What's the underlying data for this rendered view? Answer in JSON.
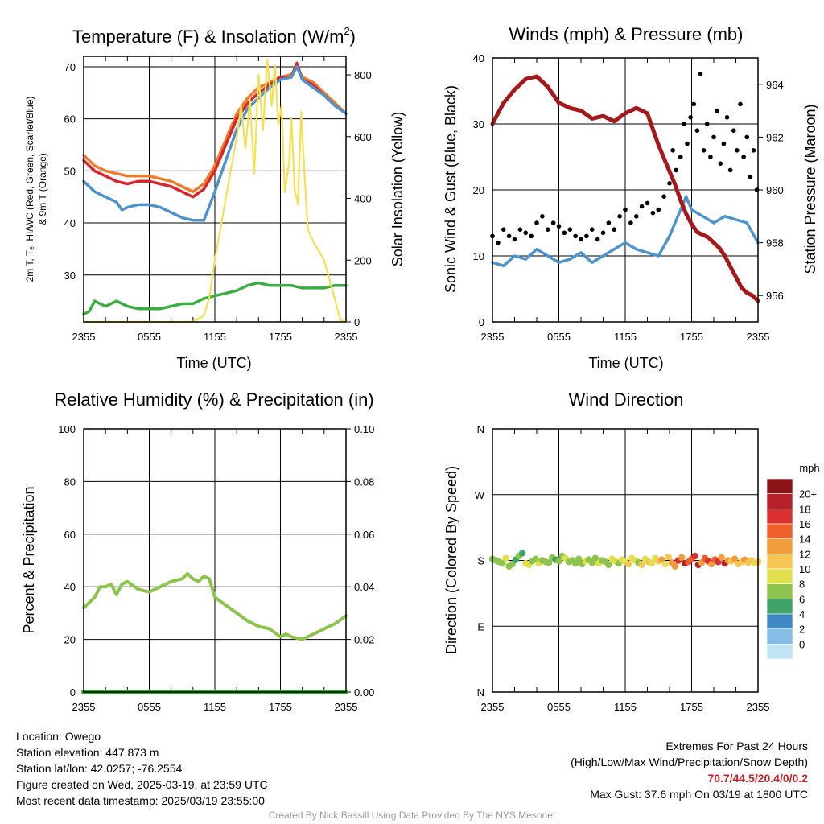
{
  "colors": {
    "red": "#d7262b",
    "green": "#3cac44",
    "blue": "#4f93cd",
    "orange": "#ef7c2c",
    "yellow": "#f4df55",
    "maroon": "#a3191c",
    "black": "#000000",
    "rh": "#8dc44d",
    "precip": "#3e9f3a",
    "footer_highlight": "#c0262b",
    "credit": "#9a9a9a"
  },
  "chart_data": [
    {
      "id": "temperature",
      "type": "line",
      "title": "Temperature (F) & Insolation (W/m",
      "title_sup": "2",
      "title_close": ")",
      "xlabel": "Time (UTC)",
      "ylabel": "2m T, Tₑ, HI/WC (Red, Green, Scarlet/Blue)",
      "ylabel2": "& 9m T (Orange)",
      "ylabel_right": "Solar Insolation (Yellow)",
      "x_ticks": [
        "2355",
        "0555",
        "1155",
        "1755",
        "2355"
      ],
      "x_range": [
        0,
        24
      ],
      "ylim": [
        21,
        72
      ],
      "y_ticks": [
        "30",
        "40",
        "50",
        "60",
        "70"
      ],
      "y_tick_values": [
        30,
        40,
        50,
        60,
        70
      ],
      "ylim_right": [
        0,
        860
      ],
      "y_right_ticks": [
        "0",
        "200",
        "400",
        "600",
        "800"
      ],
      "y_right_tick_values": [
        0,
        200,
        400,
        600,
        800
      ],
      "grid": true,
      "series": [
        {
          "color_key": "orange",
          "axis": "left",
          "x": [
            0,
            1,
            2,
            3,
            4,
            5,
            6,
            7,
            8,
            9,
            9.5,
            10,
            11,
            12,
            13,
            14,
            15,
            16,
            17,
            18,
            19,
            19.5,
            20,
            21,
            22,
            23,
            24
          ],
          "y": [
            53,
            51,
            50,
            49.5,
            49,
            49,
            49,
            48.5,
            48,
            47,
            46.5,
            46,
            47.5,
            51,
            56,
            61,
            64,
            66,
            67,
            68,
            68.5,
            70,
            68,
            67,
            65,
            63,
            61
          ]
        },
        {
          "color_key": "red",
          "axis": "left",
          "x": [
            0,
            1,
            2,
            3,
            4,
            5,
            6,
            7,
            8,
            9,
            9.5,
            10,
            11,
            12,
            13,
            14,
            15,
            16,
            17,
            18,
            19,
            19.5,
            20,
            21,
            22,
            23,
            24
          ],
          "y": [
            52,
            50,
            49,
            48,
            47.5,
            48,
            48,
            47.5,
            47,
            46,
            45.5,
            45,
            46.5,
            50,
            55,
            60,
            63,
            65,
            66.5,
            68,
            68,
            70.7,
            67.5,
            66.5,
            64.5,
            62.5,
            61
          ]
        },
        {
          "color_key": "blue",
          "axis": "left",
          "x": [
            0,
            1,
            2,
            3,
            3.5,
            4,
            5,
            6,
            7,
            8,
            9,
            10,
            11,
            12,
            13,
            14,
            15,
            16,
            17,
            18,
            19,
            19.5,
            20,
            21,
            22,
            23,
            24
          ],
          "y": [
            48,
            46,
            45,
            44,
            42.5,
            43,
            43.5,
            43.5,
            43,
            42,
            41,
            40.5,
            40.5,
            46,
            52,
            58,
            62,
            64,
            66,
            67.5,
            68,
            70,
            67.5,
            66,
            64.5,
            62.5,
            61
          ]
        },
        {
          "color_key": "green",
          "axis": "left",
          "x": [
            0,
            0.5,
            1,
            1.5,
            2,
            2.5,
            3,
            4,
            5,
            6,
            7,
            8,
            9,
            10,
            11,
            12,
            13,
            14,
            15,
            16,
            17,
            18,
            19,
            20,
            21,
            22,
            23,
            24
          ],
          "y": [
            22.5,
            23,
            25,
            24.5,
            24,
            24.5,
            25,
            24,
            23.5,
            23.5,
            23.5,
            24,
            24.5,
            24.5,
            25.5,
            26,
            26.5,
            27,
            28,
            28.5,
            28,
            28,
            28,
            27.5,
            27.5,
            27.5,
            28,
            28
          ]
        },
        {
          "color_key": "yellow",
          "axis": "right",
          "x": [
            0,
            10,
            11,
            11.5,
            12,
            13,
            14,
            14.4,
            14.8,
            15.2,
            15.6,
            16,
            16.4,
            16.8,
            17.2,
            17.5,
            17.8,
            18.1,
            18.4,
            18.8,
            19,
            19.3,
            19.6,
            19.9,
            20.2,
            20.5,
            21,
            22,
            23,
            23.5,
            24
          ],
          "y": [
            0,
            0,
            20,
            80,
            200,
            400,
            600,
            700,
            560,
            720,
            480,
            800,
            620,
            850,
            700,
            830,
            640,
            700,
            420,
            520,
            660,
            430,
            380,
            680,
            480,
            300,
            260,
            200,
            70,
            5,
            0
          ]
        }
      ]
    },
    {
      "id": "winds",
      "type": "line",
      "title": "Winds (mph) & Pressure (mb)",
      "xlabel": "Time (UTC)",
      "ylabel": "Sonic Wind & Gust (Blue, Black)",
      "ylabel_right": "Station Pressure (Maroon)",
      "x_ticks": [
        "2355",
        "0555",
        "1155",
        "1755",
        "2355"
      ],
      "x_range": [
        0,
        24
      ],
      "ylim": [
        0,
        40
      ],
      "y_ticks": [
        "0",
        "10",
        "20",
        "30",
        "40"
      ],
      "y_tick_values": [
        0,
        10,
        20,
        30,
        40
      ],
      "ylim_right": [
        955,
        965
      ],
      "y_right_ticks": [
        "956",
        "958",
        "960",
        "962",
        "964"
      ],
      "y_right_tick_values": [
        956,
        958,
        960,
        962,
        964
      ],
      "grid": true,
      "series": [
        {
          "color_key": "blue",
          "axis": "left",
          "kind": "line",
          "x": [
            0,
            1,
            2,
            3,
            4,
            5,
            6,
            7,
            8,
            9,
            10,
            11,
            12,
            13,
            14,
            15,
            16,
            17,
            17.5,
            18,
            19,
            20,
            21,
            22,
            23,
            24
          ],
          "y": [
            9,
            8.5,
            10,
            9.5,
            11,
            10,
            9,
            9.5,
            10.5,
            9,
            10,
            11,
            12,
            11,
            10.5,
            10,
            13,
            17,
            19,
            17,
            16,
            15,
            16,
            15.5,
            15,
            12
          ]
        },
        {
          "color_key": "black",
          "axis": "left",
          "kind": "scatter",
          "x": [
            0,
            0.5,
            1,
            1.5,
            2,
            2.5,
            3,
            3.5,
            4,
            4.5,
            5,
            5.5,
            6,
            6.5,
            7,
            7.5,
            8,
            8.5,
            9,
            9.5,
            10,
            10.5,
            11,
            11.5,
            12,
            12.5,
            13,
            13.5,
            14,
            14.5,
            15,
            15.5,
            16,
            16.3,
            16.6,
            17,
            17.3,
            17.6,
            17.9,
            18.2,
            18.5,
            18.8,
            19.1,
            19.4,
            19.7,
            20,
            20.3,
            20.6,
            20.9,
            21.2,
            21.5,
            21.8,
            22.1,
            22.4,
            22.7,
            23,
            23.3,
            23.6,
            23.9
          ],
          "y": [
            13,
            12,
            14,
            13,
            12.5,
            14,
            13.5,
            13,
            15,
            16,
            14,
            15,
            14.5,
            13.5,
            14,
            13,
            12.5,
            13,
            14,
            12.5,
            13.5,
            15,
            14,
            16,
            17,
            15,
            16,
            17.5,
            18,
            16.5,
            17,
            19,
            21,
            26,
            23,
            25,
            30,
            27,
            31,
            33,
            29,
            37.6,
            26,
            30,
            25,
            28,
            32,
            24,
            27,
            31,
            23,
            29,
            26,
            33,
            25,
            28,
            22,
            26,
            20
          ]
        },
        {
          "color_key": "maroon",
          "axis": "right",
          "kind": "line",
          "x": [
            0,
            1,
            2,
            3,
            4,
            5,
            6,
            7,
            8,
            9,
            10,
            11,
            12,
            13,
            14,
            14.5,
            15,
            15.5,
            16,
            16.5,
            17,
            17.5,
            18,
            18.5,
            19,
            19.5,
            20,
            20.5,
            21,
            21.5,
            22,
            22.5,
            23,
            23.5,
            24
          ],
          "y": [
            962.5,
            963.3,
            963.8,
            964.2,
            964.3,
            963.9,
            963.3,
            963.1,
            963,
            962.7,
            962.8,
            962.6,
            962.9,
            963.1,
            962.9,
            962.3,
            961.7,
            961.2,
            960.7,
            960.2,
            959.6,
            959.1,
            958.7,
            958.4,
            958.3,
            958.2,
            958,
            957.8,
            957.5,
            957.1,
            956.7,
            956.3,
            956.1,
            956.0,
            955.8
          ]
        }
      ]
    },
    {
      "id": "humidity",
      "type": "line",
      "title": "Relative Humidity (%) & Precipitation (in)",
      "ylabel": "Percent & Precipitation",
      "x_ticks": [
        "2355",
        "0555",
        "1155",
        "1755",
        "2355"
      ],
      "x_range": [
        0,
        24
      ],
      "ylim": [
        0,
        100
      ],
      "y_ticks": [
        "0",
        "20",
        "40",
        "60",
        "80",
        "100"
      ],
      "y_tick_values": [
        0,
        20,
        40,
        60,
        80,
        100
      ],
      "ylim_right": [
        0,
        0.1
      ],
      "y_right_ticks": [
        "0.00",
        "0.02",
        "0.04",
        "0.06",
        "0.08",
        "0.10"
      ],
      "y_right_tick_values": [
        0,
        0.02,
        0.04,
        0.06,
        0.08,
        0.1
      ],
      "grid": true,
      "series": [
        {
          "color_key": "rh",
          "axis": "left",
          "x": [
            0,
            1,
            1.5,
            2,
            2.5,
            3,
            3.5,
            4,
            5,
            6,
            7,
            8,
            9,
            9.5,
            10,
            10.5,
            11,
            11.5,
            12,
            13,
            14,
            15,
            16,
            17,
            18,
            18.5,
            19,
            20,
            21,
            22,
            23,
            24
          ],
          "y": [
            32,
            36,
            40,
            40,
            41,
            37,
            41,
            42,
            39,
            38,
            40,
            42,
            43,
            45,
            43,
            42,
            44,
            43,
            36,
            33,
            30,
            27,
            25,
            24,
            21,
            22,
            21,
            20,
            22,
            24,
            26,
            29
          ]
        },
        {
          "color_key": "precip",
          "axis": "right",
          "x": [
            0,
            24
          ],
          "y": [
            0,
            0
          ]
        }
      ]
    },
    {
      "id": "wind_direction",
      "type": "scatter",
      "title": "Wind Direction",
      "ylabel": "Direction (Colored By Speed)",
      "x_ticks": [
        "2355",
        "0555",
        "1155",
        "1755",
        "2355"
      ],
      "x_range": [
        0,
        24
      ],
      "ylim": [
        0,
        360
      ],
      "y_ticks": [
        "N",
        "E",
        "S",
        "W",
        "N"
      ],
      "y_tick_values": [
        0,
        90,
        180,
        270,
        360
      ],
      "grid": true,
      "colorbar": {
        "title": "mph",
        "labels": [
          "20+",
          "18",
          "16",
          "14",
          "12",
          "10",
          "8",
          "6",
          "4",
          "2",
          "0"
        ],
        "colors": [
          "#8c1518",
          "#b8202a",
          "#d8302c",
          "#ee5f2a",
          "#f39c3b",
          "#f7c552",
          "#e0e04e",
          "#8dc44d",
          "#3ea567",
          "#3f89c4",
          "#86bde6",
          "#bfe5f7"
        ]
      },
      "points": {
        "x": [
          0,
          0.3,
          0.6,
          0.9,
          1.2,
          1.5,
          1.8,
          2.1,
          2.4,
          2.7,
          3,
          3.3,
          3.6,
          3.9,
          4.2,
          4.5,
          4.8,
          5.1,
          5.4,
          5.7,
          6,
          6.3,
          6.6,
          6.9,
          7.2,
          7.5,
          7.8,
          8.1,
          8.4,
          8.7,
          9,
          9.3,
          9.6,
          9.9,
          10.2,
          10.5,
          10.8,
          11.1,
          11.4,
          11.7,
          12,
          12.3,
          12.6,
          12.9,
          13.2,
          13.5,
          13.8,
          14.1,
          14.4,
          14.7,
          15,
          15.3,
          15.6,
          15.9,
          16.2,
          16.5,
          16.8,
          17.1,
          17.4,
          17.7,
          18,
          18.3,
          18.6,
          18.9,
          19.2,
          19.5,
          19.8,
          20.1,
          20.4,
          20.7,
          21,
          21.3,
          21.6,
          21.9,
          22.2,
          22.5,
          22.8,
          23.1,
          23.4,
          23.7,
          24
        ],
        "y": [
          182,
          180,
          178,
          176,
          183,
          172,
          175,
          181,
          186,
          190,
          176,
          174,
          179,
          182,
          176,
          180,
          178,
          177,
          184,
          181,
          179,
          186,
          183,
          178,
          180,
          176,
          182,
          175,
          179,
          181,
          177,
          183,
          176,
          180,
          178,
          174,
          182,
          179,
          176,
          181,
          178,
          175,
          183,
          180,
          177,
          174,
          182,
          178,
          176,
          183,
          179,
          181,
          175,
          185,
          177,
          172,
          180,
          184,
          176,
          178,
          182,
          186,
          174,
          177,
          183,
          179,
          175,
          181,
          178,
          184,
          176,
          180,
          179,
          182,
          175,
          178,
          181,
          177,
          180,
          176,
          178
        ],
        "speed": [
          8,
          9,
          8,
          8,
          10,
          9,
          8,
          7,
          9,
          7,
          11,
          10,
          9,
          8,
          10,
          9,
          8,
          9,
          8,
          7,
          9,
          8,
          10,
          9,
          8,
          9,
          8,
          9,
          10,
          9,
          8,
          9,
          10,
          9,
          8,
          9,
          10,
          11,
          9,
          10,
          10,
          12,
          11,
          10,
          9,
          12,
          11,
          12,
          10,
          11,
          12,
          14,
          11,
          13,
          15,
          14,
          19,
          15,
          20,
          17,
          16,
          18,
          20,
          15,
          17,
          19,
          14,
          16,
          18,
          15,
          20,
          14,
          13,
          15,
          12,
          13,
          14,
          12,
          13,
          11,
          12
        ]
      }
    }
  ],
  "footer": {
    "location": "Location: Owego",
    "elevation": "Station elevation: 447.873 m",
    "latlon": "Station lat/lon: 42.0257; -76.2554",
    "created": "Figure created on Wed, 2025-03-19, at 23:59 UTC",
    "recent": "Most recent data timestamp: 2025/03/19 23:55:00",
    "extremes_title": "Extremes For Past 24 Hours",
    "extremes_legend": "(High/Low/Max Wind/Precipitation/Snow Depth)",
    "extremes_values": "70.7/44.5/20.4/0/0.2",
    "max_gust": "Max Gust: 37.6 mph On 03/19 at 1800 UTC",
    "credit": "Created By Nick Bassill Using Data Provided By The NYS Mesonet"
  }
}
